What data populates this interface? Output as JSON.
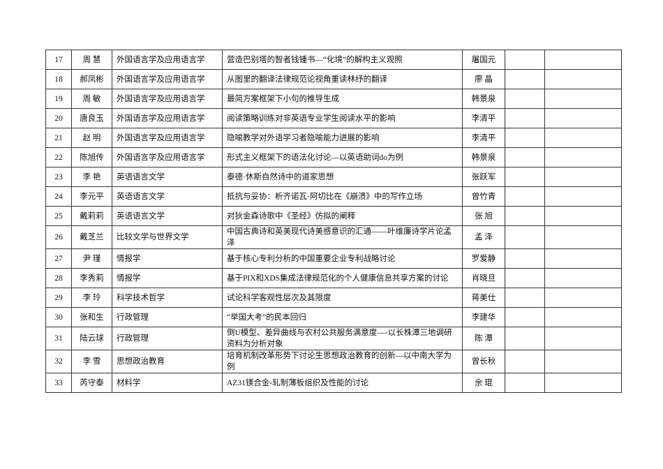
{
  "table": {
    "rows": [
      [
        "17",
        "周 慧",
        "外国语言学及应用语言学",
        "营造巴别塔的智者钱锺书—“化境”的解构主义观照",
        "屠国元"
      ],
      [
        "18",
        "郝凤彬",
        "外国语言学及应用语言学",
        "从图里的翻译法律规范论视角重读林纾的翻译",
        "廖 晶"
      ],
      [
        "19",
        "周 敏",
        "外国语言学及应用语言学",
        "最简方案框架下小句的推导生成",
        "韩景泉"
      ],
      [
        "20",
        "唐良玉",
        "外国语言学及应用语言学",
        "阅读策略训练对非英语专业学生阅读水平的影响",
        "李清平"
      ],
      [
        "21",
        "赵 明",
        "外国语言学及应用语言学",
        "隐喻教学对外语学习者隐喻能力进展的影响",
        "李清平"
      ],
      [
        "22",
        "陈旭传",
        "外国语言学及应用语言学",
        "形式主义框架下的语法化讨论—以英语助词do为例",
        "韩景泉"
      ],
      [
        "23",
        "李 艳",
        "英语语言文学",
        "泰德·休斯自然诗中的道家思想",
        "张跃军"
      ],
      [
        "24",
        "李元平",
        "英语语言文学",
        "抵抗与妥协：析齐诺瓦·阿切比在《崩溃》中的写作立场",
        "曾竹青"
      ],
      [
        "25",
        "戴莉莉",
        "英语语言文学",
        "对狄金森诗歌中《圣经》仿拟的阐释",
        "张 旭"
      ],
      [
        "26",
        "戴芝兰",
        "比较文学与世界文学",
        "中国古典诗和英美现代诗美感意识的汇通——叶维廉诗学片论孟泽",
        "孟 泽"
      ],
      [
        "27",
        "尹 瑾",
        "情报学",
        "基于核心专利分析的中国重要企业专利战略讨论",
        "罗爱静"
      ],
      [
        "28",
        "李秀莉",
        "情报学",
        "基于PIX和XDS集成法律规范化的个人健康信息共享方案的讨论",
        "肖晓旦"
      ],
      [
        "29",
        "李 玲",
        "科学技术哲学",
        "试论科学客观性层次及其限度",
        "蒋美仕"
      ],
      [
        "30",
        "张和生",
        "行政管理",
        "“举国大考”的民本回归",
        "李建华"
      ],
      [
        "31",
        "陆云球",
        "行政管理",
        "倒U模型、差异曲线与农村公共服务满意度—-以长株潭三地调研资料为分析对象",
        "陈 潭"
      ],
      [
        "32",
        "李 雪",
        "思想政治教育",
        "培育机制改革形势下讨论生思想政治教育的创新—以中南大学为例",
        "曾长秋"
      ],
      [
        "33",
        "芮守泰",
        "材料学",
        "AZ31镁合金-轧制薄板组织及性能的讨论",
        "余 琨"
      ]
    ]
  }
}
